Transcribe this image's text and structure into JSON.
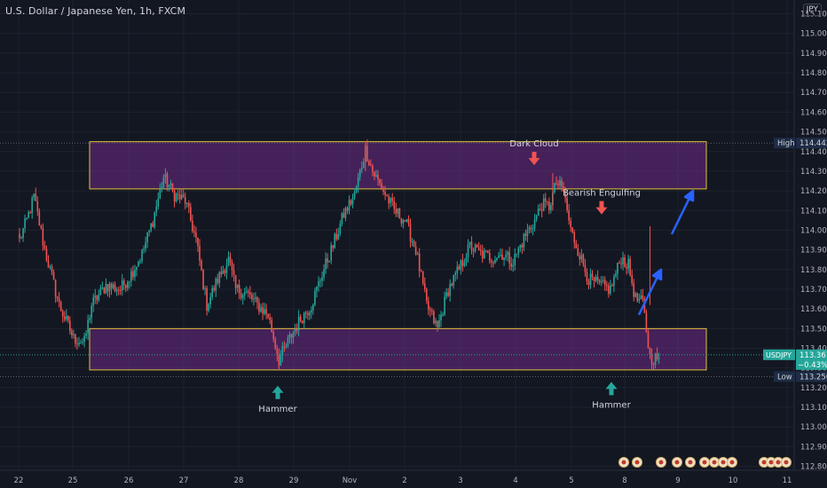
{
  "chart_data": {
    "type": "candlestick",
    "title": "U.S. Dollar / Japanese Yen, 1h, FXCM",
    "price_unit": "JPY",
    "y_range": [
      112.78,
      115.17
    ],
    "y_ticks": [
      "112.800",
      "112.900",
      "113.000",
      "113.100",
      "113.200",
      "113.300",
      "113.400",
      "113.500",
      "113.600",
      "113.700",
      "113.800",
      "113.900",
      "114.000",
      "114.100",
      "114.200",
      "114.300",
      "114.400",
      "114.500",
      "114.600",
      "114.700",
      "114.800",
      "114.900",
      "115.000",
      "115.100"
    ],
    "x_ticks": [
      "22",
      "25",
      "26",
      "27",
      "28",
      "29",
      "Nov",
      "2",
      "3",
      "4",
      "5",
      "8",
      "9",
      "10",
      "11"
    ],
    "high_line": {
      "label": "High",
      "value": "114.443",
      "price": 114.443
    },
    "low_line": {
      "label": "Low",
      "value": "113.256",
      "price": 113.256
    },
    "last_price": {
      "symbol": "USDJPY",
      "value": "113.367",
      "change": "−0.43%",
      "price": 113.367
    },
    "zones": [
      {
        "name": "resistance-zone",
        "top": 114.45,
        "bottom": 114.21,
        "x_from": "Oct 25 08:00",
        "x_to": "Nov 9 08:00"
      },
      {
        "name": "support-zone",
        "top": 113.5,
        "bottom": 113.29,
        "x_from": "Oct 25 08:00",
        "x_to": "Nov 9 08:00"
      }
    ],
    "annotations": [
      {
        "text": "Dark Cloud",
        "marker": "down-arrow",
        "x": "Nov 4 05:00",
        "price": 114.29
      },
      {
        "text": "Bearish Engulfing",
        "marker": "down-arrow",
        "x": "Nov 5 14:00",
        "price": 114.04
      },
      {
        "text": "Hammer",
        "marker": "up-arrow",
        "x": "Oct 28 14:00",
        "price": 113.25
      },
      {
        "text": "Hammer",
        "marker": "up-arrow",
        "x": "Nov 5 23:00",
        "price": 113.27
      }
    ],
    "projection_arrows": [
      {
        "from_price": 113.57,
        "to_price": 113.8
      },
      {
        "from_price": 113.98,
        "to_price": 114.2
      }
    ],
    "ohlc_anchors": [
      [
        0,
        113.95
      ],
      [
        4,
        114.05
      ],
      [
        8,
        114.17
      ],
      [
        14,
        113.9
      ],
      [
        22,
        113.62
      ],
      [
        30,
        113.45
      ],
      [
        36,
        113.43
      ],
      [
        40,
        113.62
      ],
      [
        48,
        113.72
      ],
      [
        56,
        113.7
      ],
      [
        62,
        113.78
      ],
      [
        68,
        113.88
      ],
      [
        74,
        114.05
      ],
      [
        80,
        114.27
      ],
      [
        86,
        114.18
      ],
      [
        92,
        114.15
      ],
      [
        98,
        113.95
      ],
      [
        104,
        113.62
      ],
      [
        110,
        113.75
      ],
      [
        116,
        113.85
      ],
      [
        120,
        113.7
      ],
      [
        126,
        113.68
      ],
      [
        132,
        113.62
      ],
      [
        138,
        113.57
      ],
      [
        144,
        113.34
      ],
      [
        150,
        113.45
      ],
      [
        156,
        113.55
      ],
      [
        162,
        113.62
      ],
      [
        168,
        113.78
      ],
      [
        174,
        113.92
      ],
      [
        180,
        114.08
      ],
      [
        186,
        114.18
      ],
      [
        192,
        114.41
      ],
      [
        196,
        114.3
      ],
      [
        202,
        114.2
      ],
      [
        208,
        114.1
      ],
      [
        214,
        114.05
      ],
      [
        220,
        113.9
      ],
      [
        226,
        113.62
      ],
      [
        232,
        113.5
      ],
      [
        238,
        113.7
      ],
      [
        244,
        113.8
      ],
      [
        250,
        113.92
      ],
      [
        256,
        113.88
      ],
      [
        262,
        113.86
      ],
      [
        268,
        113.88
      ],
      [
        274,
        113.84
      ],
      [
        280,
        113.96
      ],
      [
        286,
        114.05
      ],
      [
        290,
        114.13
      ],
      [
        294,
        114.12
      ],
      [
        298,
        114.24
      ],
      [
        302,
        114.2
      ],
      [
        306,
        114.0
      ],
      [
        310,
        113.9
      ],
      [
        316,
        113.75
      ],
      [
        322,
        113.72
      ],
      [
        328,
        113.7
      ],
      [
        334,
        113.86
      ],
      [
        338,
        113.82
      ],
      [
        342,
        113.65
      ],
      [
        346,
        113.63
      ],
      [
        350,
        113.35
      ],
      [
        355,
        113.35
      ]
    ],
    "color_up": "#26a69a",
    "color_down": "#ef5350",
    "zone_fill": "#6e2a86",
    "zone_border": "#e4c33b",
    "arrow_color": "#2962ff",
    "marker_up_color": "#26a69a",
    "marker_down_color": "#ef5350"
  }
}
